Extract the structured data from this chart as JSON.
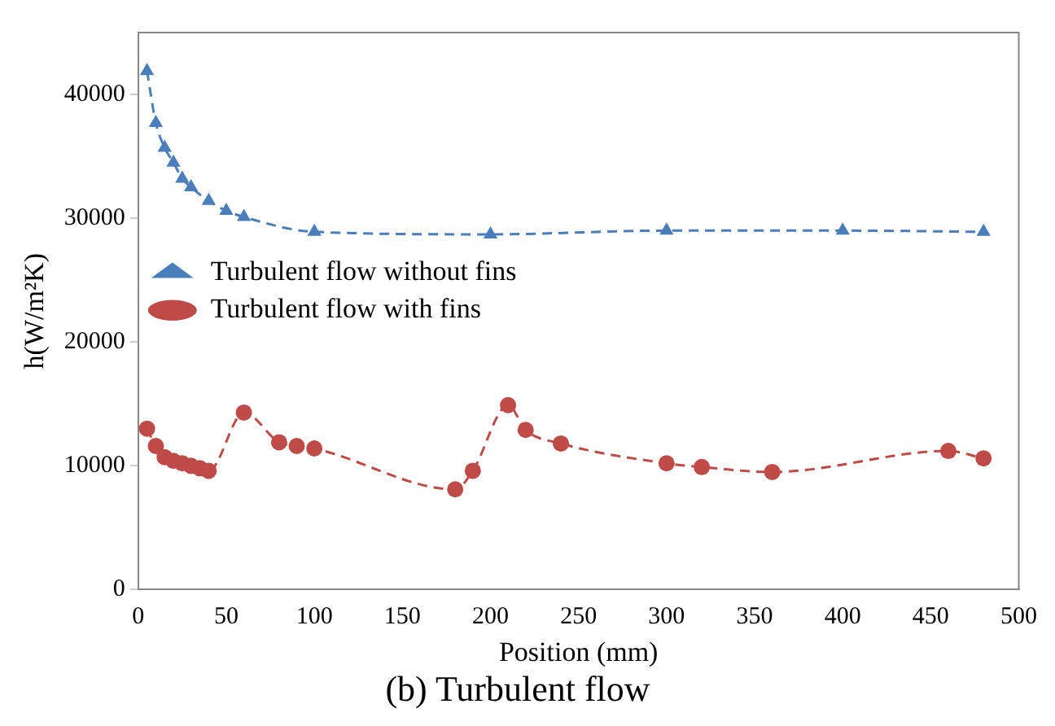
{
  "chart_data": {
    "type": "line",
    "title": "(b) Turbulent flow",
    "xlabel": "Position (mm)",
    "ylabel": "h(W/m²K)",
    "xlim": [
      0,
      500
    ],
    "xticks": [
      0,
      50,
      100,
      150,
      200,
      250,
      300,
      350,
      400,
      450,
      500
    ],
    "ylim": [
      0,
      45000
    ],
    "yticks": [
      0,
      10000,
      20000,
      30000,
      40000
    ],
    "grid": false,
    "legend": "top",
    "line_style": "dashed",
    "series": [
      {
        "name": "Turbulent flow without fins",
        "color": "#4a7ebb",
        "marker": "triangle",
        "x": [
          5,
          10,
          15,
          20,
          25,
          30,
          40,
          50,
          60,
          100,
          200,
          300,
          400,
          480
        ],
        "values": [
          41900,
          37700,
          35700,
          34500,
          33200,
          32500,
          31400,
          30600,
          30100,
          28900,
          28700,
          29000,
          29000,
          28900
        ]
      },
      {
        "name": "Turbulent flow with fins",
        "color": "#be4b48",
        "marker": "circle",
        "x": [
          5,
          10,
          15,
          20,
          25,
          30,
          35,
          40,
          60,
          80,
          90,
          100,
          180,
          190,
          210,
          220,
          240,
          300,
          320,
          360,
          460,
          480
        ],
        "values": [
          13000,
          11600,
          10700,
          10400,
          10200,
          10000,
          9800,
          9600,
          14300,
          11900,
          11600,
          11400,
          8100,
          9600,
          14900,
          12900,
          11800,
          10200,
          9900,
          9500,
          11200,
          10600
        ]
      }
    ]
  }
}
